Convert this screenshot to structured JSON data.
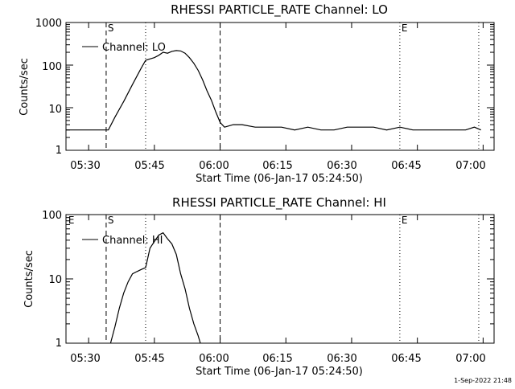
{
  "footer_timestamp": "1-Sep-2022 21:48",
  "colors": {
    "background": "#ffffff",
    "foreground": "#000000"
  },
  "chart_data": [
    {
      "type": "line",
      "title": "RHESSI PARTICLE_RATE Channel: LO",
      "xlabel": "Start Time (06-Jan-17 05:24:50)",
      "ylabel": "Counts/sec",
      "yscale": "log",
      "ylim": [
        1,
        1000
      ],
      "xlim": [
        "05:24:50",
        "07:02:30"
      ],
      "xticks": [
        "05:30",
        "05:45",
        "06:00",
        "06:15",
        "06:30",
        "06:45",
        "07:00"
      ],
      "yticks": [
        "1",
        "10",
        "100",
        "1000"
      ],
      "legend": "Channel: LO",
      "legend_position": "upper-left",
      "markers": [
        {
          "label": "S",
          "time": "05:34:00",
          "style": "dashed"
        },
        {
          "label": "",
          "time": "05:43:00",
          "style": "dotted"
        },
        {
          "label": "",
          "time": "06:00:00",
          "style": "dashed"
        },
        {
          "label": "E",
          "time": "06:41:00",
          "style": "dotted"
        },
        {
          "label": "",
          "time": "06:59:00",
          "style": "dotted"
        }
      ],
      "series": [
        {
          "name": "Channel: LO",
          "x": [
            "05:24:50",
            "05:26:00",
            "05:27:30",
            "05:29:00",
            "05:30:30",
            "05:32:00",
            "05:33:30",
            "05:34:30",
            "05:36:00",
            "05:38:00",
            "05:40:00",
            "05:42:00",
            "05:43:00",
            "05:44:00",
            "05:45:00",
            "05:46:00",
            "05:47:00",
            "05:48:00",
            "05:49:00",
            "05:50:00",
            "05:51:00",
            "05:52:00",
            "05:53:00",
            "05:54:00",
            "05:55:00",
            "05:56:00",
            "05:57:00",
            "05:58:00",
            "05:59:00",
            "06:00:00",
            "06:01:00",
            "06:03:00",
            "06:05:00",
            "06:08:00",
            "06:11:00",
            "06:14:00",
            "06:17:00",
            "06:20:00",
            "06:23:00",
            "06:26:00",
            "06:29:00",
            "06:32:00",
            "06:35:00",
            "06:38:00",
            "06:41:00",
            "06:44:00",
            "06:47:00",
            "06:50:00",
            "06:53:00",
            "06:56:00",
            "06:58:00",
            "06:59:30"
          ],
          "y": [
            3,
            3,
            3,
            3,
            3,
            3,
            3,
            3,
            6,
            14,
            35,
            85,
            130,
            140,
            150,
            170,
            200,
            190,
            210,
            220,
            215,
            190,
            150,
            110,
            75,
            45,
            25,
            15,
            8,
            4.5,
            3.5,
            4,
            4,
            3.5,
            3.5,
            3.5,
            3,
            3.5,
            3,
            3,
            3.5,
            3.5,
            3.5,
            3,
            3.5,
            3,
            3,
            3,
            3,
            3,
            3.5,
            3
          ]
        }
      ]
    },
    {
      "type": "line",
      "title": "RHESSI PARTICLE_RATE Channel: HI",
      "xlabel": "Start Time (06-Jan-17 05:24:50)",
      "ylabel": "Counts/sec",
      "yscale": "log",
      "ylim": [
        1,
        100
      ],
      "xlim": [
        "05:24:50",
        "07:02:30"
      ],
      "xticks": [
        "05:30",
        "05:45",
        "06:00",
        "06:15",
        "06:30",
        "06:45",
        "07:00"
      ],
      "yticks": [
        "1",
        "10",
        "100"
      ],
      "legend": "Channel: HI",
      "legend_position": "upper-left",
      "markers": [
        {
          "label": "E",
          "time": "05:25:00",
          "style": "none"
        },
        {
          "label": "S",
          "time": "05:34:00",
          "style": "dashed"
        },
        {
          "label": "",
          "time": "05:43:00",
          "style": "dotted"
        },
        {
          "label": "",
          "time": "06:00:00",
          "style": "dashed"
        },
        {
          "label": "E",
          "time": "06:41:00",
          "style": "dotted"
        },
        {
          "label": "",
          "time": "06:59:00",
          "style": "dotted"
        }
      ],
      "series": [
        {
          "name": "Channel: HI",
          "x": [
            "05:35:00",
            "05:36:00",
            "05:37:00",
            "05:38:00",
            "05:39:00",
            "05:40:00",
            "05:41:00",
            "05:42:00",
            "05:43:00",
            "05:44:00",
            "05:45:00",
            "05:46:00",
            "05:47:00",
            "05:48:00",
            "05:49:00",
            "05:50:00",
            "05:51:00",
            "05:52:00",
            "05:53:00",
            "05:54:00",
            "05:55:00",
            "05:55:30"
          ],
          "y": [
            1,
            1.8,
            3.5,
            6,
            9,
            12,
            13,
            14,
            15,
            30,
            38,
            48,
            52,
            42,
            35,
            24,
            12,
            7,
            3.5,
            2,
            1.3,
            1
          ]
        }
      ]
    }
  ]
}
